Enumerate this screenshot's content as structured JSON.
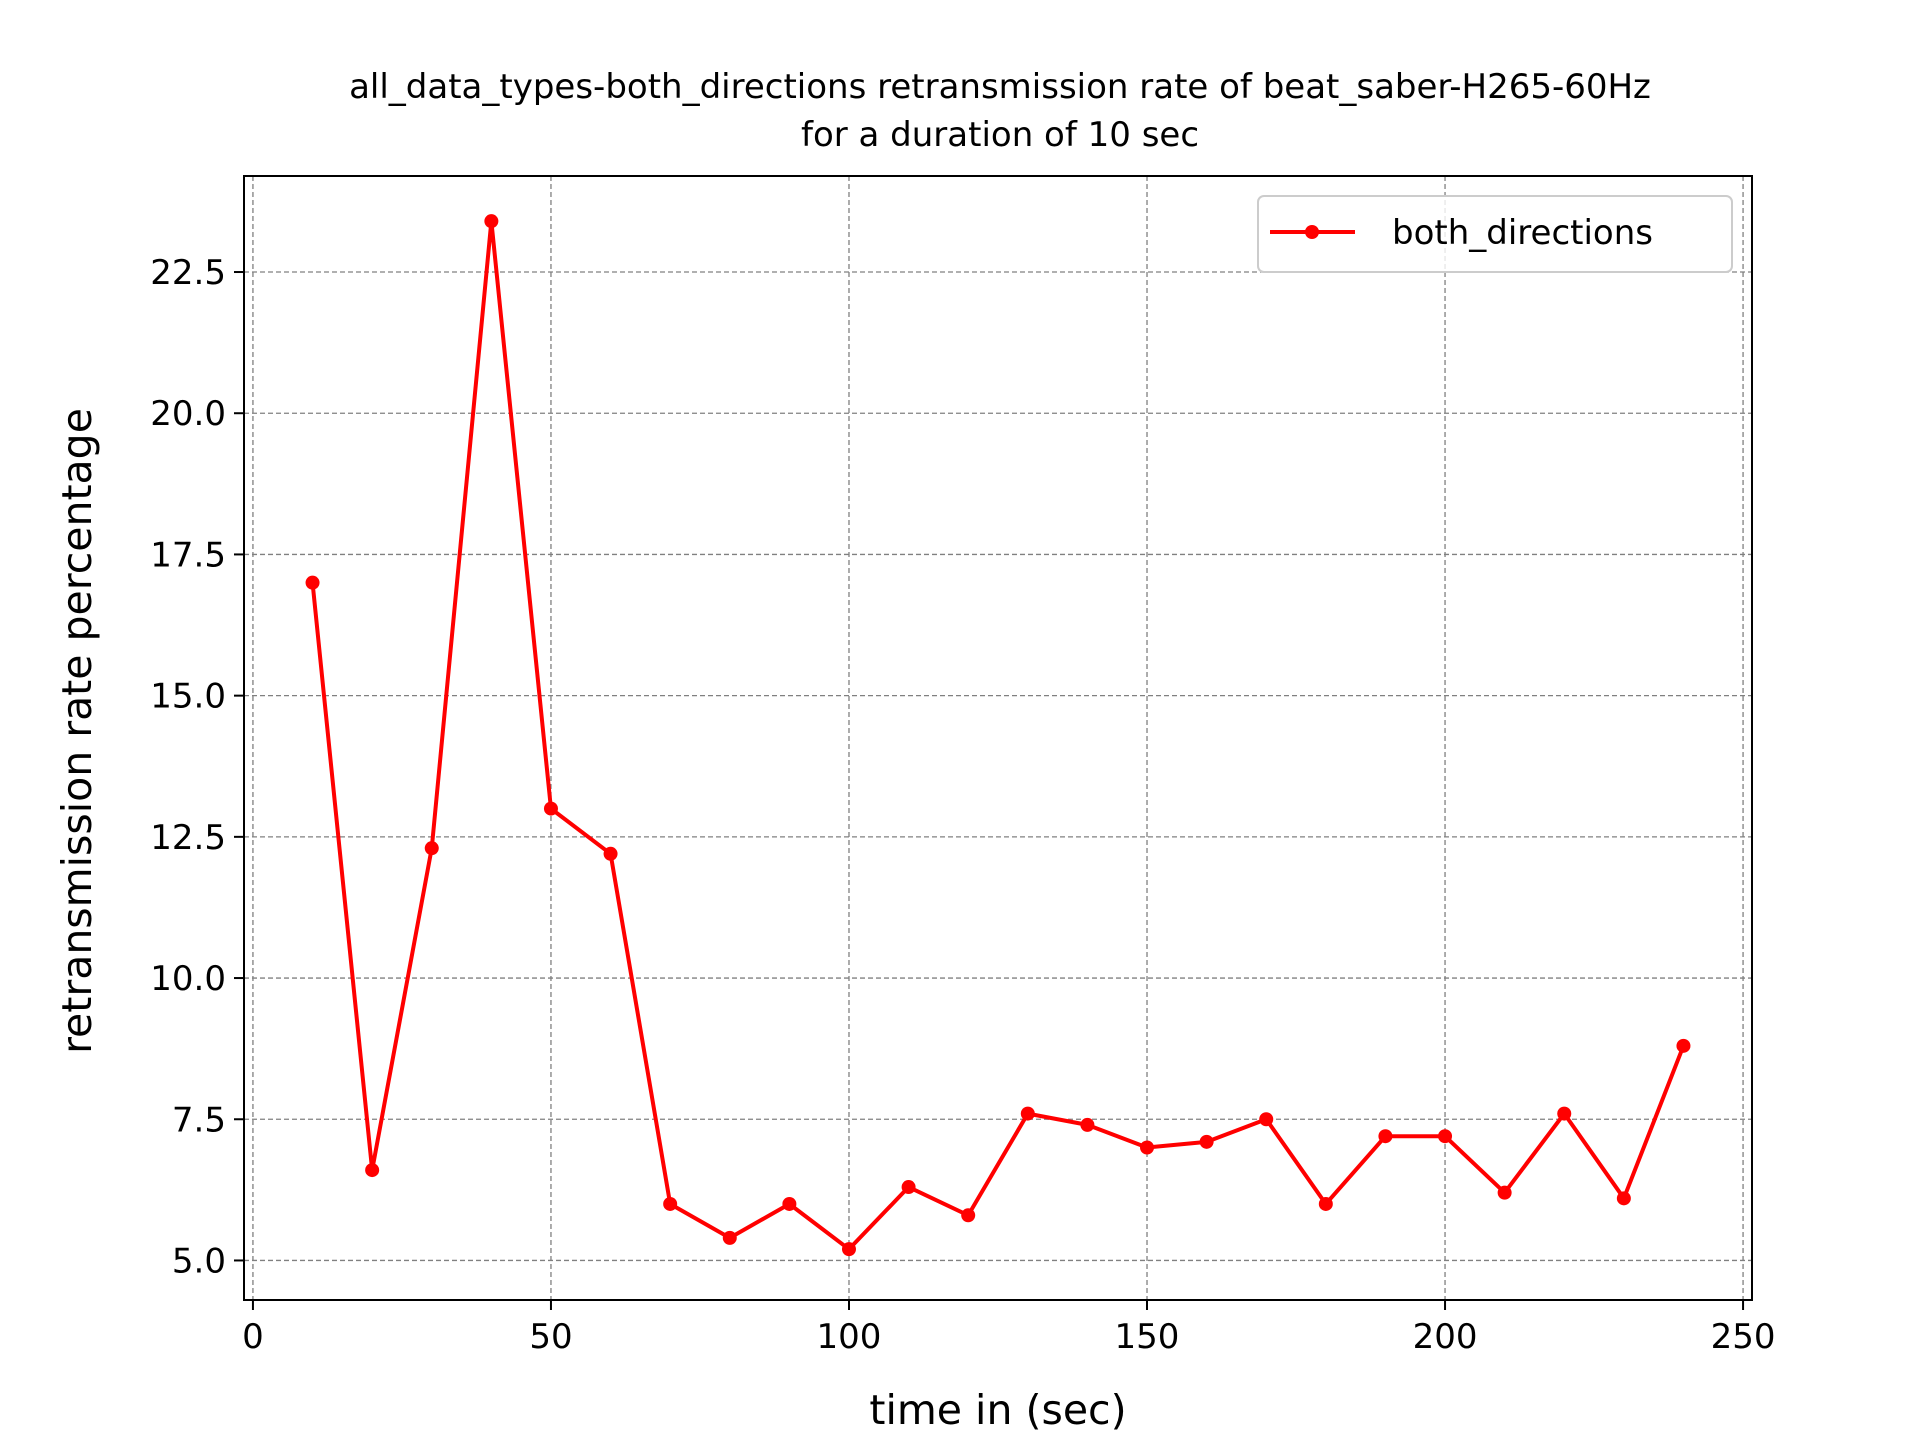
{
  "chart_data": {
    "type": "line",
    "title": [
      "all_data_types-both_directions retransmission rate of beat_saber-H265-60Hz",
      "for a duration of 10 sec"
    ],
    "xlabel": "time in (sec)",
    "ylabel": "retransmission rate percentage",
    "xlim": [
      -1.5,
      251.5
    ],
    "ylim": [
      4.3,
      24.2
    ],
    "xticks": [
      0,
      50,
      100,
      150,
      200,
      250
    ],
    "yticks": [
      5.0,
      7.5,
      10.0,
      12.5,
      15.0,
      17.5,
      20.0,
      22.5
    ],
    "xtick_labels": [
      "0",
      "50",
      "100",
      "150",
      "200",
      "250"
    ],
    "ytick_labels": [
      "5.0",
      "7.5",
      "10.0",
      "12.5",
      "15.0",
      "17.5",
      "20.0",
      "22.5"
    ],
    "grid": true,
    "legend_position": "top-right",
    "series": [
      {
        "name": "both_directions",
        "color": "#ff0000",
        "marker": "circle",
        "x": [
          10,
          20,
          30,
          40,
          50,
          60,
          70,
          80,
          90,
          100,
          110,
          120,
          130,
          140,
          150,
          160,
          170,
          180,
          190,
          200,
          210,
          220,
          230,
          240
        ],
        "y": [
          17.0,
          6.6,
          12.3,
          23.4,
          13.0,
          12.2,
          6.0,
          5.4,
          6.0,
          5.2,
          6.3,
          5.8,
          7.6,
          7.4,
          7.0,
          7.1,
          7.5,
          6.0,
          7.2,
          7.2,
          6.2,
          7.6,
          6.1,
          8.8
        ]
      }
    ]
  }
}
